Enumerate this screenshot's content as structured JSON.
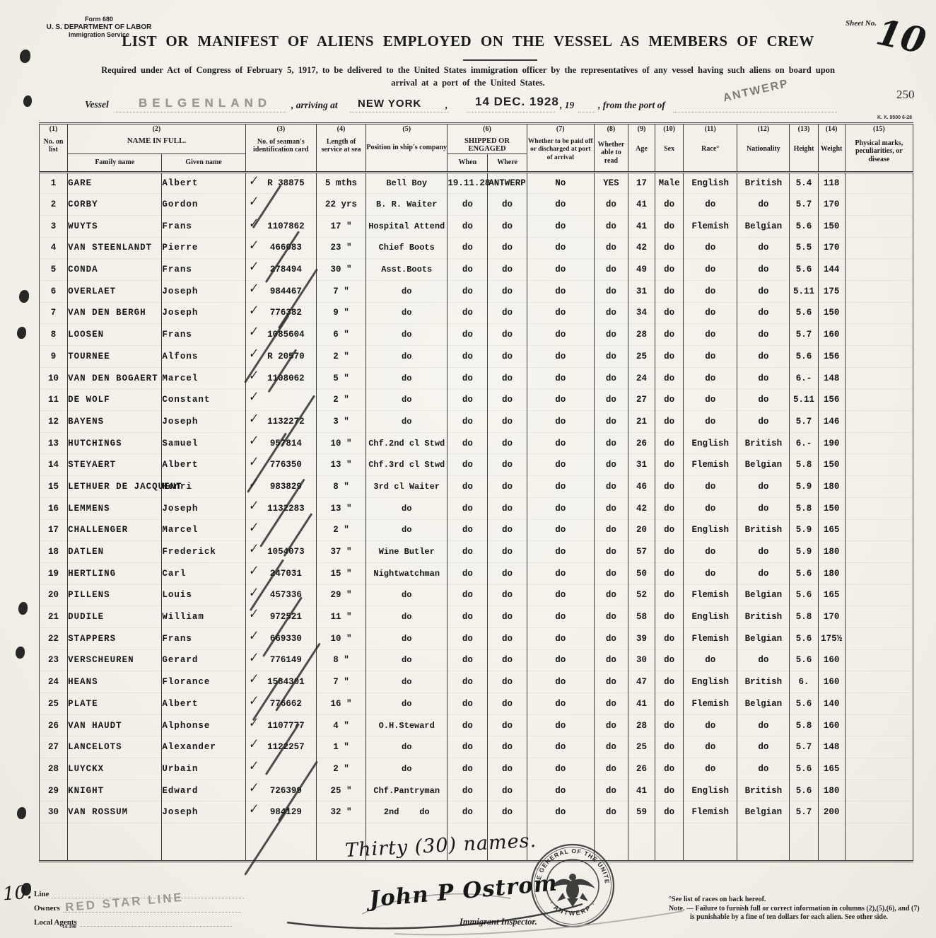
{
  "form": {
    "form_no": "Form 680",
    "department": "U. S. DEPARTMENT OF LABOR",
    "service": "Immigration Service",
    "sheet_no_label": "Sheet No.",
    "sheet_no_value": "10",
    "title": "LIST OR MANIFEST OF ALIENS EMPLOYED ON THE VESSEL AS MEMBERS OF CREW",
    "requirement_line1": "Required under Act of Congress of February 5, 1917, to be delivered to the United States immigration officer by the representatives of any vessel having such aliens on board upon",
    "requirement_line2": "arrival at a port of the United States.",
    "stamp_number": "250",
    "print_code": "K. X. 9500 6-28"
  },
  "vessel_line": {
    "vessel_label": "Vessel",
    "vessel_name": "BELGENLAND",
    "arriving_label": ", arriving at",
    "port_of_arrival": "NEW YORK",
    "date_stamp": "14 DEC. 1928",
    "year_label": ", 19",
    "from_port_label": ", from the port of",
    "port_of_departure": "ANTWERP"
  },
  "table": {
    "columns": {
      "c1_num": "(1)",
      "c1_label": "No. on list",
      "c2_num": "(2)",
      "c2_label": "NAME IN FULL.",
      "c2_sub1": "Family name",
      "c2_sub2": "Given name",
      "c3_num": "(3)",
      "c3_label": "No. of seaman's identification card",
      "c4_num": "(4)",
      "c4_label": "Length of service at sea",
      "c5_num": "(5)",
      "c5_label": "Position in ship's company",
      "c6_num": "(6)",
      "c6_label": "SHIPPED OR ENGAGED",
      "c6_sub1": "When",
      "c6_sub2": "Where",
      "c7_num": "(7)",
      "c7_label": "Whether to be paid off or discharged at port of arrival",
      "c8_num": "(8)",
      "c8_label": "Whether able to read",
      "c9_num": "(9)",
      "c9_label": "Age",
      "c10_num": "(10)",
      "c10_label": "Sex",
      "c11_num": "(11)",
      "c11_label": "Race°",
      "c12_num": "(12)",
      "c12_label": "Nationality",
      "c13_num": "(13)",
      "c13_label": "Height",
      "c14_num": "(14)",
      "c14_label": "Weight",
      "c15_num": "(15)",
      "c15_label": "Physical marks, peculiarities, or disease"
    },
    "rows": [
      {
        "no": "1",
        "family": "GARE",
        "given": "Albert",
        "card": "R 38875",
        "service": "5 mths",
        "position": "Bell Boy",
        "when": "19.11.28",
        "where": "ANTWERP",
        "paid": "No",
        "read": "YES",
        "age": "17",
        "sex": "Male",
        "race": "English",
        "nationality": "British",
        "height": "5.4",
        "weight": "118",
        "marks": ""
      },
      {
        "no": "2",
        "family": "CORBY",
        "given": "Gordon",
        "card": "",
        "service": "22 yrs",
        "position": "B. R. Waiter",
        "when": "do",
        "where": "do",
        "paid": "do",
        "read": "do",
        "age": "41",
        "sex": "do",
        "race": "do",
        "nationality": "do",
        "height": "5.7",
        "weight": "170",
        "marks": ""
      },
      {
        "no": "3",
        "family": "WUYTS",
        "given": "Frans",
        "card": "1107862",
        "service": "17 \"",
        "position": "Hospital Attend",
        "when": "do",
        "where": "do",
        "paid": "do",
        "read": "do",
        "age": "41",
        "sex": "do",
        "race": "Flemish",
        "nationality": "Belgian",
        "height": "5.6",
        "weight": "150",
        "marks": ""
      },
      {
        "no": "4",
        "family": "VAN STEENLANDT",
        "given": "Pierre",
        "card": "466083",
        "service": "23 \"",
        "position": "Chief Boots",
        "when": "do",
        "where": "do",
        "paid": "do",
        "read": "do",
        "age": "42",
        "sex": "do",
        "race": "do",
        "nationality": "do",
        "height": "5.5",
        "weight": "170",
        "marks": ""
      },
      {
        "no": "5",
        "family": "CONDA",
        "given": "Frans",
        "card": "278494",
        "service": "30 \"",
        "position": "Asst.Boots",
        "when": "do",
        "where": "do",
        "paid": "do",
        "read": "do",
        "age": "49",
        "sex": "do",
        "race": "do",
        "nationality": "do",
        "height": "5.6",
        "weight": "144",
        "marks": ""
      },
      {
        "no": "6",
        "family": "OVERLAET",
        "given": "Joseph",
        "card": "984467",
        "service": "7 \"",
        "position": "do",
        "when": "do",
        "where": "do",
        "paid": "do",
        "read": "do",
        "age": "31",
        "sex": "do",
        "race": "do",
        "nationality": "do",
        "height": "5.11",
        "weight": "175",
        "marks": ""
      },
      {
        "no": "7",
        "family": "VAN DEN BERGH",
        "given": "Joseph",
        "card": "776382",
        "service": "9 \"",
        "position": "do",
        "when": "do",
        "where": "do",
        "paid": "do",
        "read": "do",
        "age": "34",
        "sex": "do",
        "race": "do",
        "nationality": "do",
        "height": "5.6",
        "weight": "150",
        "marks": ""
      },
      {
        "no": "8",
        "family": "LOOSEN",
        "given": "Frans",
        "card": "1085604",
        "service": "6 \"",
        "position": "do",
        "when": "do",
        "where": "do",
        "paid": "do",
        "read": "do",
        "age": "28",
        "sex": "do",
        "race": "do",
        "nationality": "do",
        "height": "5.7",
        "weight": "160",
        "marks": ""
      },
      {
        "no": "9",
        "family": "TOURNEE",
        "given": "Alfons",
        "card": "R 20570",
        "service": "2 \"",
        "position": "do",
        "when": "do",
        "where": "do",
        "paid": "do",
        "read": "do",
        "age": "25",
        "sex": "do",
        "race": "do",
        "nationality": "do",
        "height": "5.6",
        "weight": "156",
        "marks": ""
      },
      {
        "no": "10",
        "family": "VAN DEN BOGAERT",
        "given": "Marcel",
        "card": "1108062",
        "service": "5 \"",
        "position": "do",
        "when": "do",
        "where": "do",
        "paid": "do",
        "read": "do",
        "age": "24",
        "sex": "do",
        "race": "do",
        "nationality": "do",
        "height": "6.-",
        "weight": "148",
        "marks": ""
      },
      {
        "no": "11",
        "family": "DE WOLF",
        "given": "Constant",
        "card": "",
        "service": "2 \"",
        "position": "do",
        "when": "do",
        "where": "do",
        "paid": "do",
        "read": "do",
        "age": "27",
        "sex": "do",
        "race": "do",
        "nationality": "do",
        "height": "5.11",
        "weight": "156",
        "marks": ""
      },
      {
        "no": "12",
        "family": "BAYENS",
        "given": "Joseph",
        "card": "1132272",
        "service": "3 \"",
        "position": "do",
        "when": "do",
        "where": "do",
        "paid": "do",
        "read": "do",
        "age": "21",
        "sex": "do",
        "race": "do",
        "nationality": "do",
        "height": "5.7",
        "weight": "146",
        "marks": ""
      },
      {
        "no": "13",
        "family": "HUTCHINGS",
        "given": "Samuel",
        "card": "957814",
        "service": "10 \"",
        "position": "Chf.2nd cl Stwd",
        "when": "do",
        "where": "do",
        "paid": "do",
        "read": "do",
        "age": "26",
        "sex": "do",
        "race": "English",
        "nationality": "British",
        "height": "6.-",
        "weight": "190",
        "marks": ""
      },
      {
        "no": "14",
        "family": "STEYAERT",
        "given": "Albert",
        "card": "776350",
        "service": "13 \"",
        "position": "Chf.3rd cl Stwd",
        "when": "do",
        "where": "do",
        "paid": "do",
        "read": "do",
        "age": "31",
        "sex": "do",
        "race": "Flemish",
        "nationality": "Belgian",
        "height": "5.8",
        "weight": "150",
        "marks": ""
      },
      {
        "no": "15",
        "family": "LETHUER DE JACQUENT",
        "given": "Henri",
        "card": "983829",
        "service": "8 \"",
        "position": "3rd cl Waiter",
        "when": "do",
        "where": "do",
        "paid": "do",
        "read": "do",
        "age": "46",
        "sex": "do",
        "race": "do",
        "nationality": "do",
        "height": "5.9",
        "weight": "180",
        "marks": ""
      },
      {
        "no": "16",
        "family": "LEMMENS",
        "given": "Joseph",
        "card": "1132283",
        "service": "13 \"",
        "position": "do",
        "when": "do",
        "where": "do",
        "paid": "do",
        "read": "do",
        "age": "42",
        "sex": "do",
        "race": "do",
        "nationality": "do",
        "height": "5.8",
        "weight": "150",
        "marks": ""
      },
      {
        "no": "17",
        "family": "CHALLENGER",
        "given": "Marcel",
        "card": "",
        "service": "2 \"",
        "position": "do",
        "when": "do",
        "where": "do",
        "paid": "do",
        "read": "do",
        "age": "20",
        "sex": "do",
        "race": "English",
        "nationality": "British",
        "height": "5.9",
        "weight": "165",
        "marks": ""
      },
      {
        "no": "18",
        "family": "DATLEN",
        "given": "Frederick",
        "card": "1054073",
        "service": "37 \"",
        "position": "Wine Butler",
        "when": "do",
        "where": "do",
        "paid": "do",
        "read": "do",
        "age": "57",
        "sex": "do",
        "race": "do",
        "nationality": "do",
        "height": "5.9",
        "weight": "180",
        "marks": ""
      },
      {
        "no": "19",
        "family": "HERTLING",
        "given": "Carl",
        "card": "247031",
        "service": "15 \"",
        "position": "Nightwatchman",
        "when": "do",
        "where": "do",
        "paid": "do",
        "read": "do",
        "age": "50",
        "sex": "do",
        "race": "do",
        "nationality": "do",
        "height": "5.6",
        "weight": "180",
        "marks": ""
      },
      {
        "no": "20",
        "family": "PILLENS",
        "given": "Louis",
        "card": "457336",
        "service": "29 \"",
        "position": "do",
        "when": "do",
        "where": "do",
        "paid": "do",
        "read": "do",
        "age": "52",
        "sex": "do",
        "race": "Flemish",
        "nationality": "Belgian",
        "height": "5.6",
        "weight": "165",
        "marks": ""
      },
      {
        "no": "21",
        "family": "DUDILE",
        "given": "William",
        "card": "972521",
        "service": "11 \"",
        "position": "do",
        "when": "do",
        "where": "do",
        "paid": "do",
        "read": "do",
        "age": "58",
        "sex": "do",
        "race": "English",
        "nationality": "British",
        "height": "5.8",
        "weight": "170",
        "marks": ""
      },
      {
        "no": "22",
        "family": "STAPPERS",
        "given": "Frans",
        "card": "669330",
        "service": "10 \"",
        "position": "do",
        "when": "do",
        "where": "do",
        "paid": "do",
        "read": "do",
        "age": "39",
        "sex": "do",
        "race": "Flemish",
        "nationality": "Belgian",
        "height": "5.6",
        "weight": "175½",
        "marks": ""
      },
      {
        "no": "23",
        "family": "VERSCHEUREN",
        "given": "Gerard",
        "card": "776149",
        "service": "8 \"",
        "position": "do",
        "when": "do",
        "where": "do",
        "paid": "do",
        "read": "do",
        "age": "30",
        "sex": "do",
        "race": "do",
        "nationality": "do",
        "height": "5.6",
        "weight": "160",
        "marks": ""
      },
      {
        "no": "24",
        "family": "HEANS",
        "given": "Florance",
        "card": "1584301",
        "service": "7 \"",
        "position": "do",
        "when": "do",
        "where": "do",
        "paid": "do",
        "read": "do",
        "age": "47",
        "sex": "do",
        "race": "English",
        "nationality": "British",
        "height": "6.",
        "weight": "160",
        "marks": ""
      },
      {
        "no": "25",
        "family": "PLATE",
        "given": "Albert",
        "card": "776662",
        "service": "16 \"",
        "position": "do",
        "when": "do",
        "where": "do",
        "paid": "do",
        "read": "do",
        "age": "41",
        "sex": "do",
        "race": "Flemish",
        "nationality": "Belgian",
        "height": "5.6",
        "weight": "140",
        "marks": ""
      },
      {
        "no": "26",
        "family": "VAN HAUDT",
        "given": "Alphonse",
        "card": "1107777",
        "service": "4 \"",
        "position": "O.H.Steward",
        "when": "do",
        "where": "do",
        "paid": "do",
        "read": "do",
        "age": "28",
        "sex": "do",
        "race": "do",
        "nationality": "do",
        "height": "5.8",
        "weight": "160",
        "marks": ""
      },
      {
        "no": "27",
        "family": "LANCELOTS",
        "given": "Alexander",
        "card": "1122257",
        "service": "1 \"",
        "position": "do",
        "when": "do",
        "where": "do",
        "paid": "do",
        "read": "do",
        "age": "25",
        "sex": "do",
        "race": "do",
        "nationality": "do",
        "height": "5.7",
        "weight": "148",
        "marks": ""
      },
      {
        "no": "28",
        "family": "LUYCKX",
        "given": "Urbain",
        "card": "",
        "service": "2 \"",
        "position": "do",
        "when": "do",
        "where": "do",
        "paid": "do",
        "read": "do",
        "age": "26",
        "sex": "do",
        "race": "do",
        "nationality": "do",
        "height": "5.6",
        "weight": "165",
        "marks": ""
      },
      {
        "no": "29",
        "family": "KNIGHT",
        "given": "Edward",
        "card": "726399",
        "service": "25 \"",
        "position": "Chf.Pantryman",
        "when": "do",
        "where": "do",
        "paid": "do",
        "read": "do",
        "age": "41",
        "sex": "do",
        "race": "English",
        "nationality": "British",
        "height": "5.6",
        "weight": "180",
        "marks": ""
      },
      {
        "no": "30",
        "family": "VAN ROSSUM",
        "given": "Joseph",
        "card": "984129",
        "service": "32 \"",
        "position": "2nd    do",
        "when": "do",
        "where": "do",
        "paid": "do",
        "read": "do",
        "age": "59",
        "sex": "do",
        "race": "Flemish",
        "nationality": "Belgian",
        "height": "5.7",
        "weight": "200",
        "marks": ""
      }
    ]
  },
  "annotations": {
    "check_mark": "✓",
    "total_names": "Thirty (30) names.",
    "page_number_bottom": "10."
  },
  "footer": {
    "line_label": "Line",
    "owners_label": "Owners",
    "local_agents_label": "Local Agents",
    "owners_stamp": "RED STAR LINE",
    "print_code": "14-190",
    "signature": "John P Ostrom",
    "inspector_label": "Immigrant Inspector.",
    "seal_top_text": "CONSULATE GENERAL OF THE UNITED STATES",
    "seal_bottom_text": "· ANTWERP ·",
    "footnote1": "°See list of races on back hereof.",
    "footnote2": "Note. — Failure to furnish full or correct information in columns (2),(5),(6), and (7)",
    "footnote3": "is punishable by a fine of ten dollars for each alien.  See other side."
  }
}
